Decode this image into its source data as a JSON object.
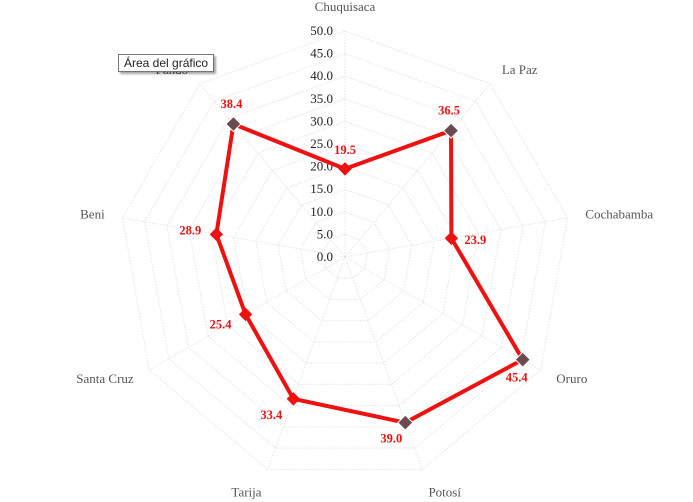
{
  "tooltip": {
    "text": "Área del gráfico"
  },
  "chart_data": {
    "type": "radar",
    "title": "",
    "categories": [
      "Chuquisaca",
      "La Paz",
      "Cochabamba",
      "Oruro",
      "Potosí",
      "Tarija",
      "Santa Cruz",
      "Beni",
      "Pando"
    ],
    "series": [
      {
        "values": [
          19.5,
          36.5,
          23.9,
          45.4,
          39.0,
          33.4,
          25.4,
          28.9,
          38.4
        ]
      }
    ],
    "value_labels": [
      "19.5",
      "36.5",
      "23.9",
      "45.4",
      "39.0",
      "33.4",
      "25.4",
      "28.9",
      "38.4"
    ],
    "rlim": [
      0,
      50
    ],
    "r_ticks": [
      "0.0",
      "5.0",
      "10.0",
      "15.0",
      "20.0",
      "25.0",
      "30.0",
      "35.0",
      "40.0",
      "45.0",
      "50.0"
    ],
    "grid": true,
    "colors": {
      "line": "#ee1111",
      "data_label": "#ee1111",
      "grid": "#e4e4e4",
      "highlight_marker": "#6b4a52"
    },
    "highlighted_points": [
      "La Paz",
      "Oruro",
      "Potosí",
      "Pando"
    ]
  }
}
